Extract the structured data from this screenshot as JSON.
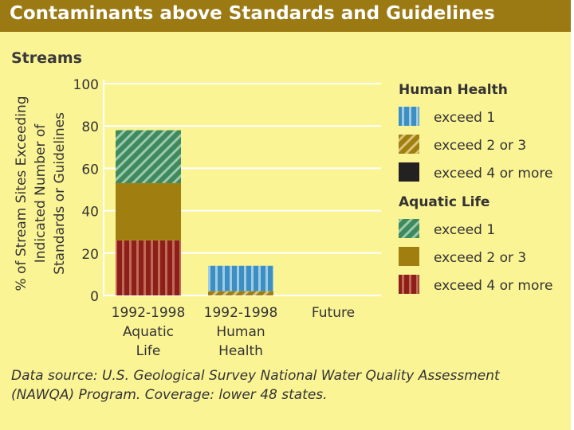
{
  "header": {
    "title": "Contaminants above Standards and Guidelines"
  },
  "subtitle": "Streams",
  "chart_data": {
    "type": "bar",
    "stacked": true,
    "title": "Contaminants above Standards and Guidelines",
    "subtitle": "Streams",
    "ylabel_lines": [
      "% of Stream Sites Exceeding",
      "Indicated Number of",
      "Standards or Guidelines"
    ],
    "ylim": [
      0,
      100
    ],
    "yticks": [
      0,
      20,
      40,
      60,
      80,
      100
    ],
    "grid": true,
    "categories": [
      {
        "id": "aquatic",
        "lines": [
          "1992-1998",
          "Aquatic",
          "Life"
        ]
      },
      {
        "id": "human",
        "lines": [
          "1992-1998",
          "Human",
          "Health"
        ]
      },
      {
        "id": "future",
        "lines": [
          "Future"
        ]
      }
    ],
    "series": [
      {
        "name": "Aquatic Life - exceed 4 or more",
        "group": "Aquatic Life",
        "label": "exceed 4 or more",
        "pattern": "vstripes",
        "base": "#8c1f1a",
        "stripe": "#c26a55",
        "values": [
          26,
          0,
          null
        ]
      },
      {
        "name": "Aquatic Life - exceed 2 or 3",
        "group": "Aquatic Life",
        "label": "exceed 2 or 3",
        "pattern": "solid",
        "base": "#a07f10",
        "stripe": "#a07f10",
        "values": [
          27,
          0,
          null
        ]
      },
      {
        "name": "Aquatic Life - exceed 1",
        "group": "Aquatic Life",
        "label": "exceed 1",
        "pattern": "diag",
        "base": "#3e8a5e",
        "stripe": "#9cc9ac",
        "values": [
          25,
          0,
          null
        ]
      },
      {
        "name": "Human Health - exceed 4 or more",
        "group": "Human Health",
        "label": "exceed 4 or more",
        "pattern": "solid",
        "base": "#222222",
        "stripe": "#222222",
        "values": [
          0,
          0,
          null
        ]
      },
      {
        "name": "Human Health - exceed 2 or 3",
        "group": "Human Health",
        "label": "exceed 2 or 3",
        "pattern": "diag",
        "base": "#a07f10",
        "stripe": "#d9c47a",
        "values": [
          0,
          2,
          null
        ]
      },
      {
        "name": "Human Health - exceed 1",
        "group": "Human Health",
        "label": "exceed 1",
        "pattern": "vstripes",
        "base": "#3c8fc0",
        "stripe": "#9ecbe6",
        "values": [
          0,
          12,
          null
        ]
      }
    ],
    "legend": {
      "position": "right",
      "groups": [
        {
          "title": "Human Health",
          "items": [
            {
              "label": "exceed 1",
              "base": "#3c8fc0",
              "stripe": "#9ecbe6",
              "pattern": "vstripes"
            },
            {
              "label": "exceed 2 or 3",
              "base": "#a07f10",
              "stripe": "#d9c47a",
              "pattern": "diag"
            },
            {
              "label": "exceed 4 or more",
              "base": "#222222",
              "stripe": "#222222",
              "pattern": "solid"
            }
          ]
        },
        {
          "title": "Aquatic Life",
          "items": [
            {
              "label": "exceed 1",
              "base": "#3e8a5e",
              "stripe": "#9cc9ac",
              "pattern": "diag"
            },
            {
              "label": "exceed 2 or 3",
              "base": "#a07f10",
              "stripe": "#a07f10",
              "pattern": "solid"
            },
            {
              "label": "exceed 4 or more",
              "base": "#8c1f1a",
              "stripe": "#c26a55",
              "pattern": "vstripes"
            }
          ]
        }
      ]
    }
  },
  "footnote": "Data source: U.S. Geological Survey National Water Quality Assessment (NAWQA) Program. Coverage: lower 48 states.",
  "colors": {
    "background": "#fbf495",
    "title_bar": "#9b7a14",
    "grid": "#ffffff",
    "axis_text": "#333333"
  }
}
